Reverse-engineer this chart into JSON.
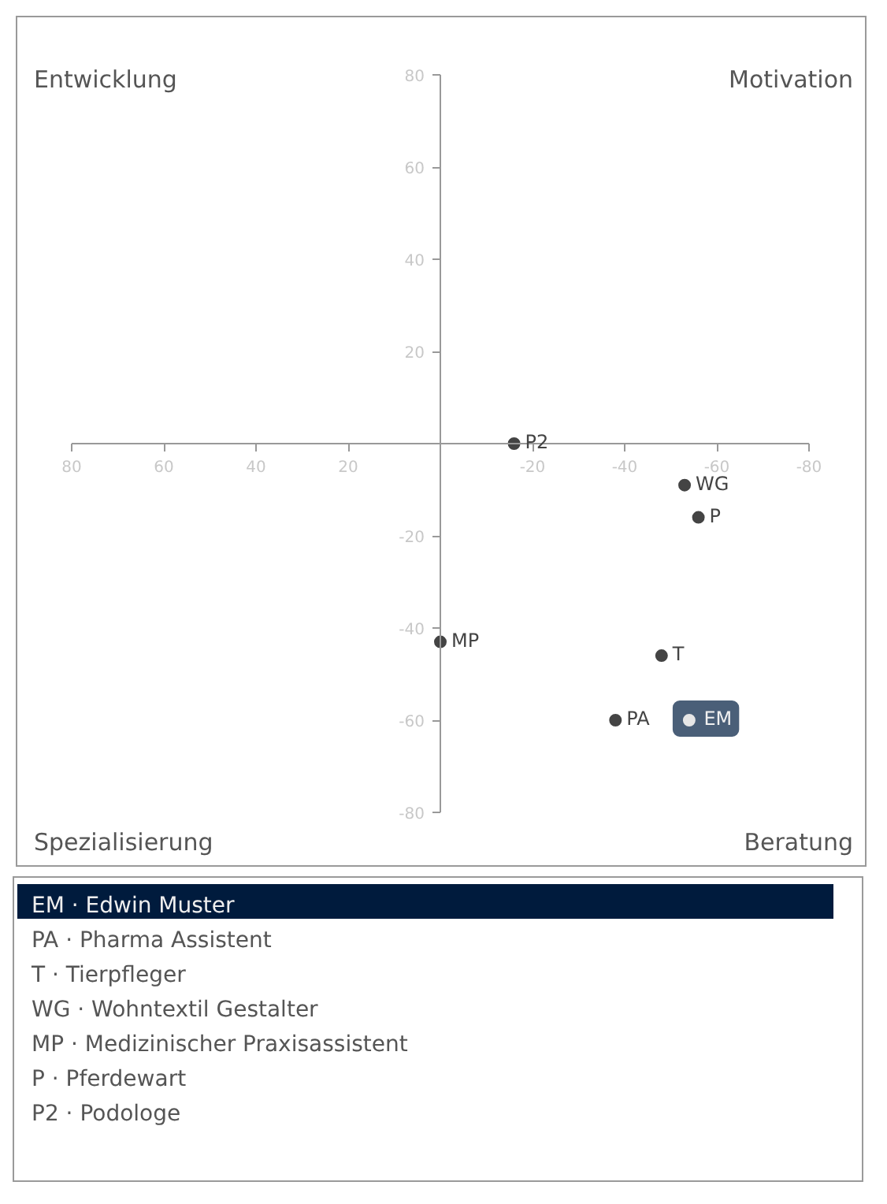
{
  "chart_data": {
    "type": "scatter",
    "xlim": [
      80,
      -80
    ],
    "ylim": [
      -80,
      80
    ],
    "xticks": [
      80,
      60,
      40,
      20,
      -20,
      -40,
      -60,
      -80
    ],
    "yticks": [
      80,
      60,
      40,
      20,
      -20,
      -40,
      -60,
      -80
    ],
    "grid": false,
    "marker": "circle",
    "series": [
      {
        "name": "EM",
        "color": "#e6e6e6",
        "x": [
          -54
        ],
        "values": [
          -60
        ]
      },
      {
        "name": "PA",
        "color": "#444444",
        "x": [
          -38
        ],
        "values": [
          -60
        ]
      },
      {
        "name": "T",
        "color": "#444444",
        "x": [
          -48
        ],
        "values": [
          -46
        ]
      },
      {
        "name": "WG",
        "color": "#444444",
        "x": [
          -53
        ],
        "values": [
          -9
        ]
      },
      {
        "name": "MP",
        "color": "#444444",
        "x": [
          0
        ],
        "values": [
          -43
        ]
      },
      {
        "name": "P",
        "color": "#444444",
        "x": [
          -56
        ],
        "values": [
          -16
        ]
      },
      {
        "name": "P2",
        "color": "#444444",
        "x": [
          -16
        ],
        "values": [
          0
        ]
      }
    ],
    "annotations": [
      "Entwicklung",
      "Motivation",
      "Spezialisierung",
      "Beratung",
      "EM · Edwin Muster",
      "PA · Pharma Assistent",
      "T · Tierpfleger",
      "WG · Wohntextil Gestalter",
      "MP · Medizinischer Praxisassistent",
      "P · Pferdewart",
      "P2 · Podologe"
    ]
  }
}
